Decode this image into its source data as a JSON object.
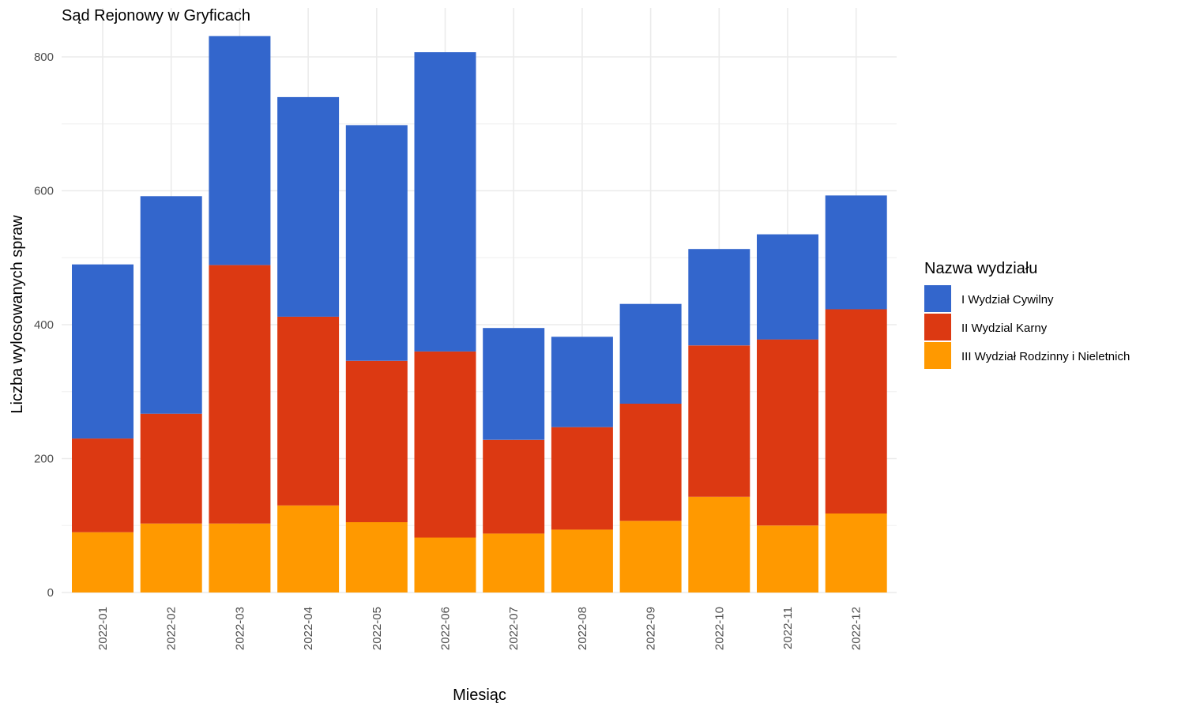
{
  "chart_data": {
    "type": "bar",
    "stacked": true,
    "title": "Sąd Rejonowy w Gryficach",
    "xlabel": "Miesiąc",
    "ylabel": "Liczba wylosowanych spraw",
    "ylim": [
      0,
      860
    ],
    "y_ticks": [
      0,
      200,
      400,
      600,
      800
    ],
    "grid": true,
    "legend": {
      "title": "Nazwa wydziału",
      "position": "right"
    },
    "categories": [
      "2022-01",
      "2022-02",
      "2022-03",
      "2022-04",
      "2022-05",
      "2022-06",
      "2022-07",
      "2022-08",
      "2022-09",
      "2022-10",
      "2022-11",
      "2022-12"
    ],
    "series": [
      {
        "name": "III Wydział Rodzinny i Nieletnich",
        "color": "#FF9900",
        "values": [
          90,
          103,
          103,
          130,
          105,
          82,
          88,
          94,
          107,
          143,
          100,
          118
        ]
      },
      {
        "name": "II Wydzial Karny",
        "color": "#DC3912",
        "values": [
          140,
          164,
          386,
          282,
          241,
          278,
          140,
          153,
          175,
          226,
          278,
          305
        ]
      },
      {
        "name": "I Wydział Cywilny",
        "color": "#3366CC",
        "values": [
          260,
          325,
          342,
          328,
          352,
          447,
          167,
          135,
          149,
          144,
          157,
          170
        ]
      }
    ]
  }
}
